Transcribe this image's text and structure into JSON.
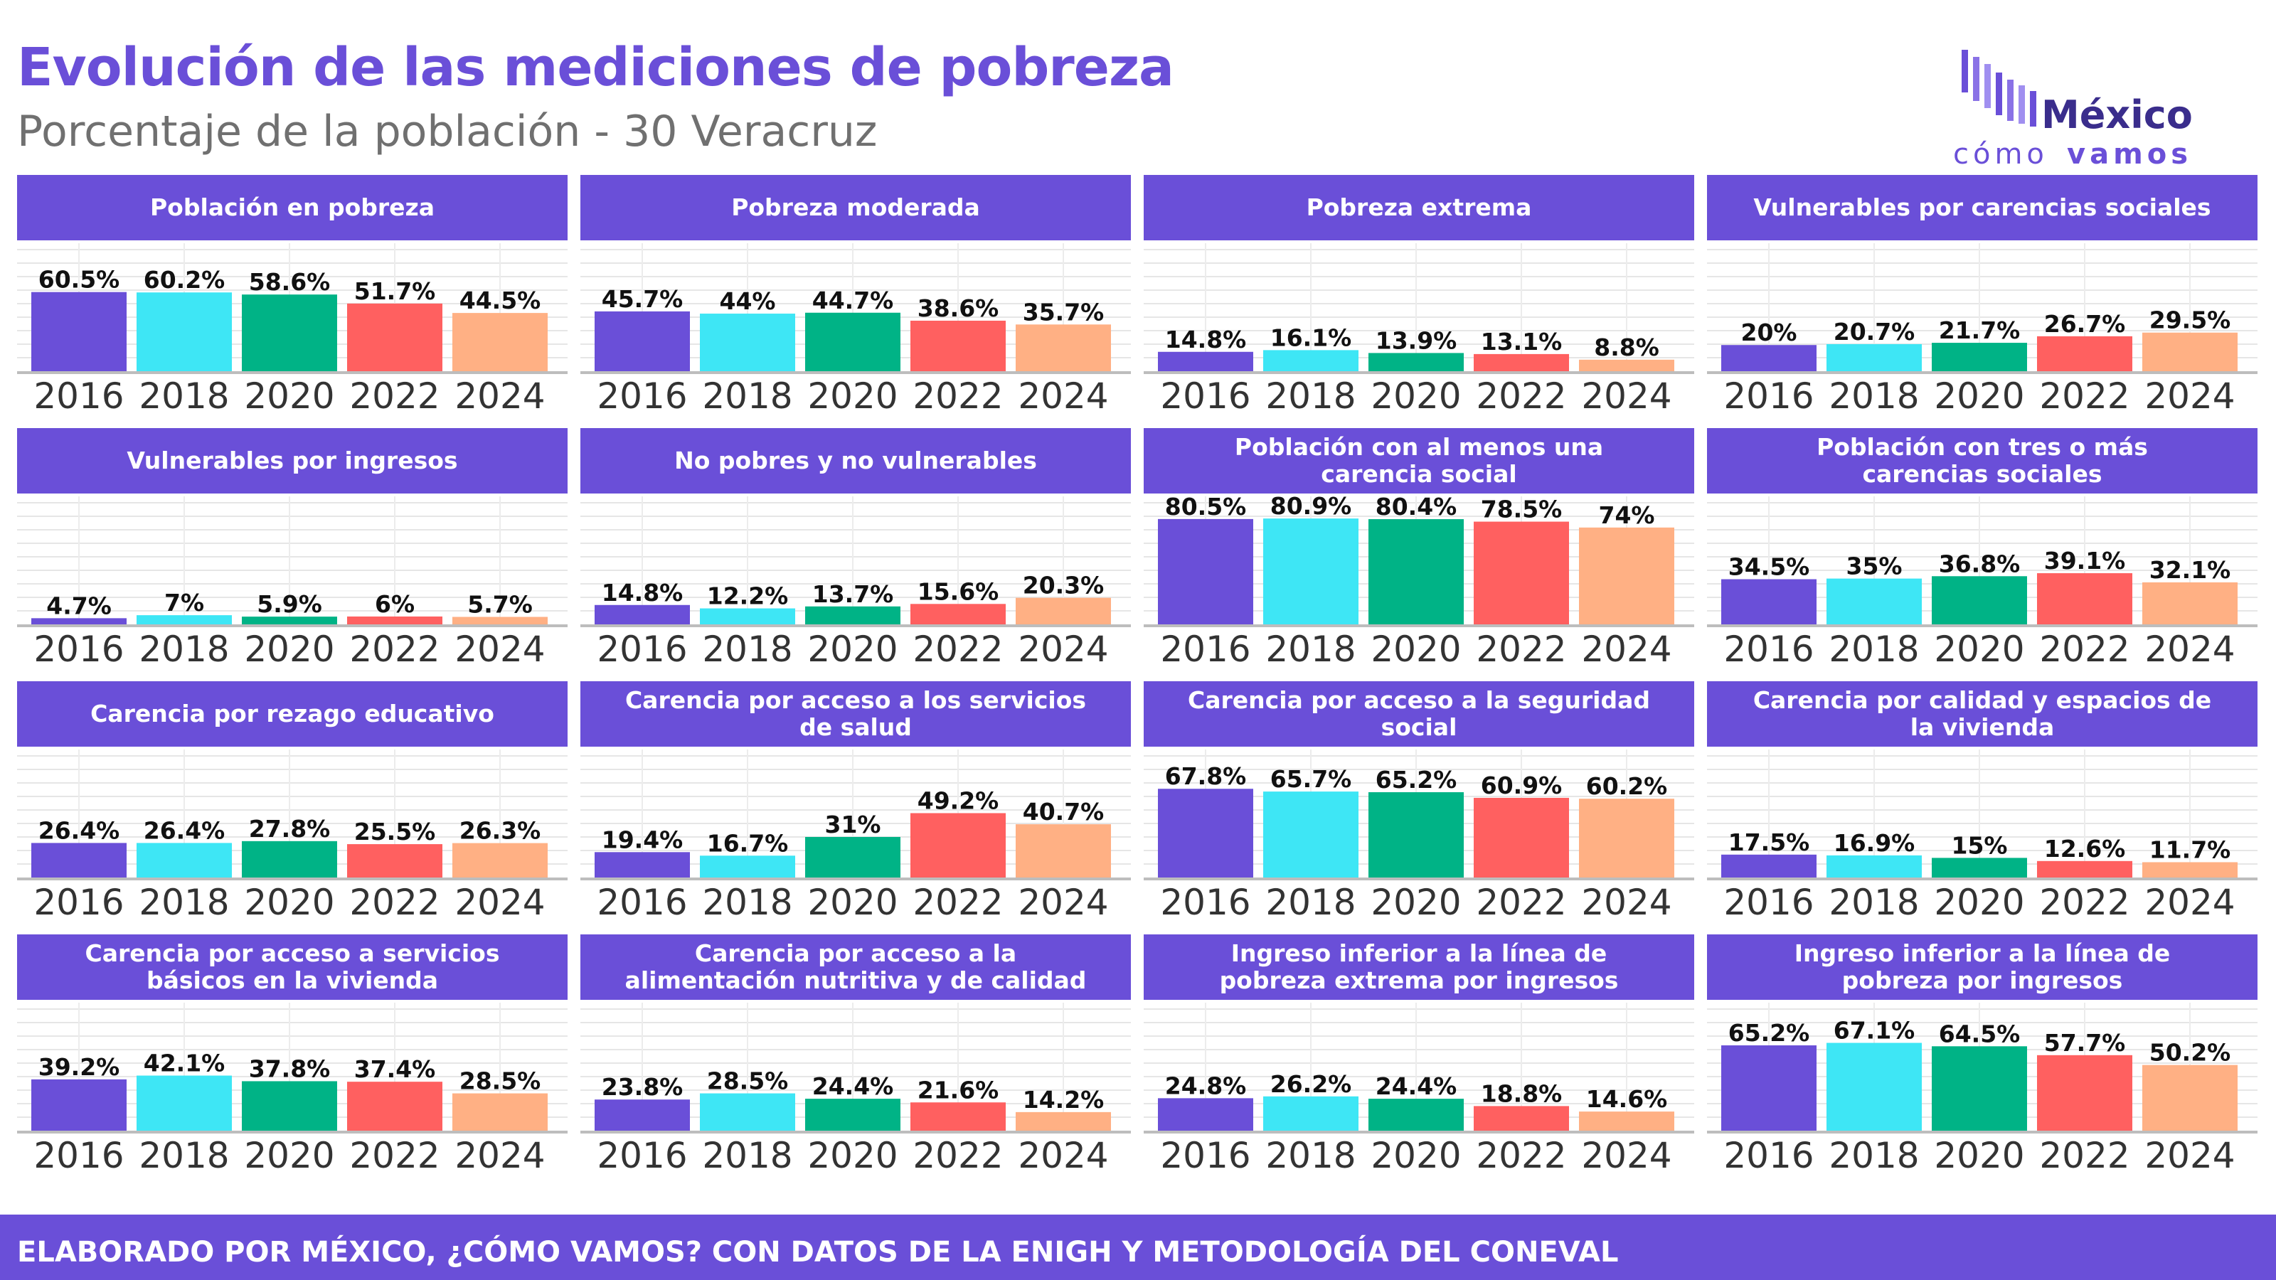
{
  "header": {
    "title": "Evolución de las mediciones de pobreza",
    "subtitle": "Porcentaje de la población - 30 Veracruz"
  },
  "logo": {
    "line1": "México",
    "line2a": "cómo",
    "line2b": "vamos"
  },
  "footer": {
    "text": "ELABORADO POR MÉXICO, ¿CÓMO VAMOS? CON DATOS DE LA ENIGH Y METODOLOGÍA DEL CONEVAL"
  },
  "colors": {
    "brand": "#6a4fd8",
    "gray": "#707070",
    "series": [
      "#6a4fd8",
      "#3ee6f5",
      "#00b386",
      "#ff6060",
      "#ffb084"
    ]
  },
  "chart_data": [
    {
      "type": "bar",
      "title": "Población en pobreza",
      "categories": [
        "2016",
        "2018",
        "2020",
        "2022",
        "2024"
      ],
      "values": [
        60.5,
        60.2,
        58.6,
        51.7,
        44.5
      ],
      "labels": [
        "60.5%",
        "60.2%",
        "58.6%",
        "51.7%",
        "44.5%"
      ],
      "ylim": [
        0,
        100
      ],
      "grid": true
    },
    {
      "type": "bar",
      "title": "Pobreza moderada",
      "categories": [
        "2016",
        "2018",
        "2020",
        "2022",
        "2024"
      ],
      "values": [
        45.7,
        44,
        44.7,
        38.6,
        35.7
      ],
      "labels": [
        "45.7%",
        "44%",
        "44.7%",
        "38.6%",
        "35.7%"
      ],
      "ylim": [
        0,
        100
      ],
      "grid": true
    },
    {
      "type": "bar",
      "title": "Pobreza extrema",
      "categories": [
        "2016",
        "2018",
        "2020",
        "2022",
        "2024"
      ],
      "values": [
        14.8,
        16.1,
        13.9,
        13.1,
        8.8
      ],
      "labels": [
        "14.8%",
        "16.1%",
        "13.9%",
        "13.1%",
        "8.8%"
      ],
      "ylim": [
        0,
        100
      ],
      "grid": true
    },
    {
      "type": "bar",
      "title": "Vulnerables por carencias sociales",
      "categories": [
        "2016",
        "2018",
        "2020",
        "2022",
        "2024"
      ],
      "values": [
        20,
        20.7,
        21.7,
        26.7,
        29.5
      ],
      "labels": [
        "20%",
        "20.7%",
        "21.7%",
        "26.7%",
        "29.5%"
      ],
      "ylim": [
        0,
        100
      ],
      "grid": true
    },
    {
      "type": "bar",
      "title": "Vulnerables por ingresos",
      "categories": [
        "2016",
        "2018",
        "2020",
        "2022",
        "2024"
      ],
      "values": [
        4.7,
        7,
        5.9,
        6,
        5.7
      ],
      "labels": [
        "4.7%",
        "7%",
        "5.9%",
        "6%",
        "5.7%"
      ],
      "ylim": [
        0,
        100
      ],
      "grid": true
    },
    {
      "type": "bar",
      "title": "No pobres y no vulnerables",
      "categories": [
        "2016",
        "2018",
        "2020",
        "2022",
        "2024"
      ],
      "values": [
        14.8,
        12.2,
        13.7,
        15.6,
        20.3
      ],
      "labels": [
        "14.8%",
        "12.2%",
        "13.7%",
        "15.6%",
        "20.3%"
      ],
      "ylim": [
        0,
        100
      ],
      "grid": true
    },
    {
      "type": "bar",
      "title": "Población con al menos una carencia social",
      "categories": [
        "2016",
        "2018",
        "2020",
        "2022",
        "2024"
      ],
      "values": [
        80.5,
        80.9,
        80.4,
        78.5,
        74
      ],
      "labels": [
        "80.5%",
        "80.9%",
        "80.4%",
        "78.5%",
        "74%"
      ],
      "ylim": [
        0,
        100
      ],
      "grid": true
    },
    {
      "type": "bar",
      "title": "Población con tres o más carencias sociales",
      "categories": [
        "2016",
        "2018",
        "2020",
        "2022",
        "2024"
      ],
      "values": [
        34.5,
        35,
        36.8,
        39.1,
        32.1
      ],
      "labels": [
        "34.5%",
        "35%",
        "36.8%",
        "39.1%",
        "32.1%"
      ],
      "ylim": [
        0,
        100
      ],
      "grid": true
    },
    {
      "type": "bar",
      "title": "Carencia por rezago educativo",
      "categories": [
        "2016",
        "2018",
        "2020",
        "2022",
        "2024"
      ],
      "values": [
        26.4,
        26.4,
        27.8,
        25.5,
        26.3
      ],
      "labels": [
        "26.4%",
        "26.4%",
        "27.8%",
        "25.5%",
        "26.3%"
      ],
      "ylim": [
        0,
        100
      ],
      "grid": true
    },
    {
      "type": "bar",
      "title": "Carencia por acceso a los servicios de salud",
      "categories": [
        "2016",
        "2018",
        "2020",
        "2022",
        "2024"
      ],
      "values": [
        19.4,
        16.7,
        31,
        49.2,
        40.7
      ],
      "labels": [
        "19.4%",
        "16.7%",
        "31%",
        "49.2%",
        "40.7%"
      ],
      "ylim": [
        0,
        100
      ],
      "grid": true
    },
    {
      "type": "bar",
      "title": "Carencia por acceso a la seguridad social",
      "categories": [
        "2016",
        "2018",
        "2020",
        "2022",
        "2024"
      ],
      "values": [
        67.8,
        65.7,
        65.2,
        60.9,
        60.2
      ],
      "labels": [
        "67.8%",
        "65.7%",
        "65.2%",
        "60.9%",
        "60.2%"
      ],
      "ylim": [
        0,
        100
      ],
      "grid": true
    },
    {
      "type": "bar",
      "title": "Carencia por calidad y espacios de la vivienda",
      "categories": [
        "2016",
        "2018",
        "2020",
        "2022",
        "2024"
      ],
      "values": [
        17.5,
        16.9,
        15,
        12.6,
        11.7
      ],
      "labels": [
        "17.5%",
        "16.9%",
        "15%",
        "12.6%",
        "11.7%"
      ],
      "ylim": [
        0,
        100
      ],
      "grid": true
    },
    {
      "type": "bar",
      "title": "Carencia por acceso a servicios básicos en la vivienda",
      "categories": [
        "2016",
        "2018",
        "2020",
        "2022",
        "2024"
      ],
      "values": [
        39.2,
        42.1,
        37.8,
        37.4,
        28.5
      ],
      "labels": [
        "39.2%",
        "42.1%",
        "37.8%",
        "37.4%",
        "28.5%"
      ],
      "ylim": [
        0,
        100
      ],
      "grid": true
    },
    {
      "type": "bar",
      "title": "Carencia por acceso a la alimentación nutritiva y de calidad",
      "categories": [
        "2016",
        "2018",
        "2020",
        "2022",
        "2024"
      ],
      "values": [
        23.8,
        28.5,
        24.4,
        21.6,
        14.2
      ],
      "labels": [
        "23.8%",
        "28.5%",
        "24.4%",
        "21.6%",
        "14.2%"
      ],
      "ylim": [
        0,
        100
      ],
      "grid": true
    },
    {
      "type": "bar",
      "title": "Ingreso inferior a la línea de pobreza extrema por ingresos",
      "categories": [
        "2016",
        "2018",
        "2020",
        "2022",
        "2024"
      ],
      "values": [
        24.8,
        26.2,
        24.4,
        18.8,
        14.6
      ],
      "labels": [
        "24.8%",
        "26.2%",
        "24.4%",
        "18.8%",
        "14.6%"
      ],
      "ylim": [
        0,
        100
      ],
      "grid": true
    },
    {
      "type": "bar",
      "title": "Ingreso inferior a la línea de pobreza por ingresos",
      "categories": [
        "2016",
        "2018",
        "2020",
        "2022",
        "2024"
      ],
      "values": [
        65.2,
        67.1,
        64.5,
        57.7,
        50.2
      ],
      "labels": [
        "65.2%",
        "67.1%",
        "64.5%",
        "57.7%",
        "50.2%"
      ],
      "ylim": [
        0,
        100
      ],
      "grid": true
    }
  ]
}
